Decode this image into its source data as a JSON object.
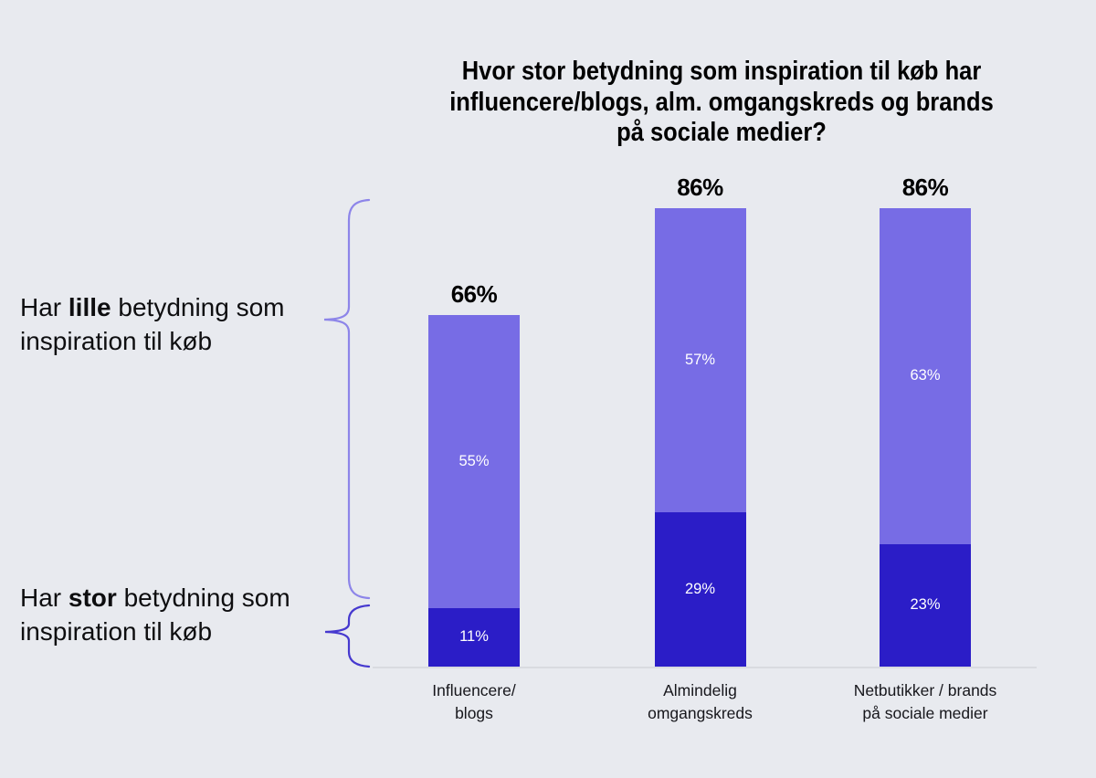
{
  "title_lines": [
    "Hvor stor betydning som inspiration til køb har",
    "influencere/blogs, alm. omgangskreds og brands",
    "på sociale medier?"
  ],
  "side_labels": {
    "lille": {
      "pre": "Har ",
      "emph": "lille",
      "post": " betydning som\ninspiration til køb"
    },
    "stor": {
      "pre": "Har ",
      "emph": "stor",
      "post": " betydning som\ninspiration til køb"
    }
  },
  "chart_data": {
    "type": "bar",
    "stacked": true,
    "title": "Hvor stor betydning som inspiration til køb har influencere/blogs, alm. omgangskreds og brands på sociale medier?",
    "categories": [
      "Influencere/\nblogs",
      "Almindelig\nomgangskreds",
      "Netbutikker / brands\npå sociale medier"
    ],
    "series": [
      {
        "name": "Har lille betydning som inspiration til køb",
        "color": "#776ce5",
        "values": [
          55,
          57,
          63
        ]
      },
      {
        "name": "Har stor betydning som inspiration til køb",
        "color": "#2b1dc7",
        "values": [
          11,
          29,
          23
        ]
      }
    ],
    "totals": [
      66,
      86,
      86
    ],
    "total_labels": [
      "66%",
      "86%",
      "86%"
    ],
    "segment_labels": [
      [
        "55%",
        "11%"
      ],
      [
        "57%",
        "29%"
      ],
      [
        "63%",
        "23%"
      ]
    ],
    "value_unit": "%",
    "ylim": [
      0,
      100
    ],
    "grid": false,
    "legend_position": "left-braces"
  },
  "colors": {
    "background": "#e8eaef",
    "bar_light": "#776ce5",
    "bar_dark": "#2b1dc7",
    "axis_line": "#d9dbe0",
    "brace_light": "#8d85e9",
    "brace_dark": "#4639cf",
    "text": "#000000",
    "segment_text": "#ffffff"
  }
}
